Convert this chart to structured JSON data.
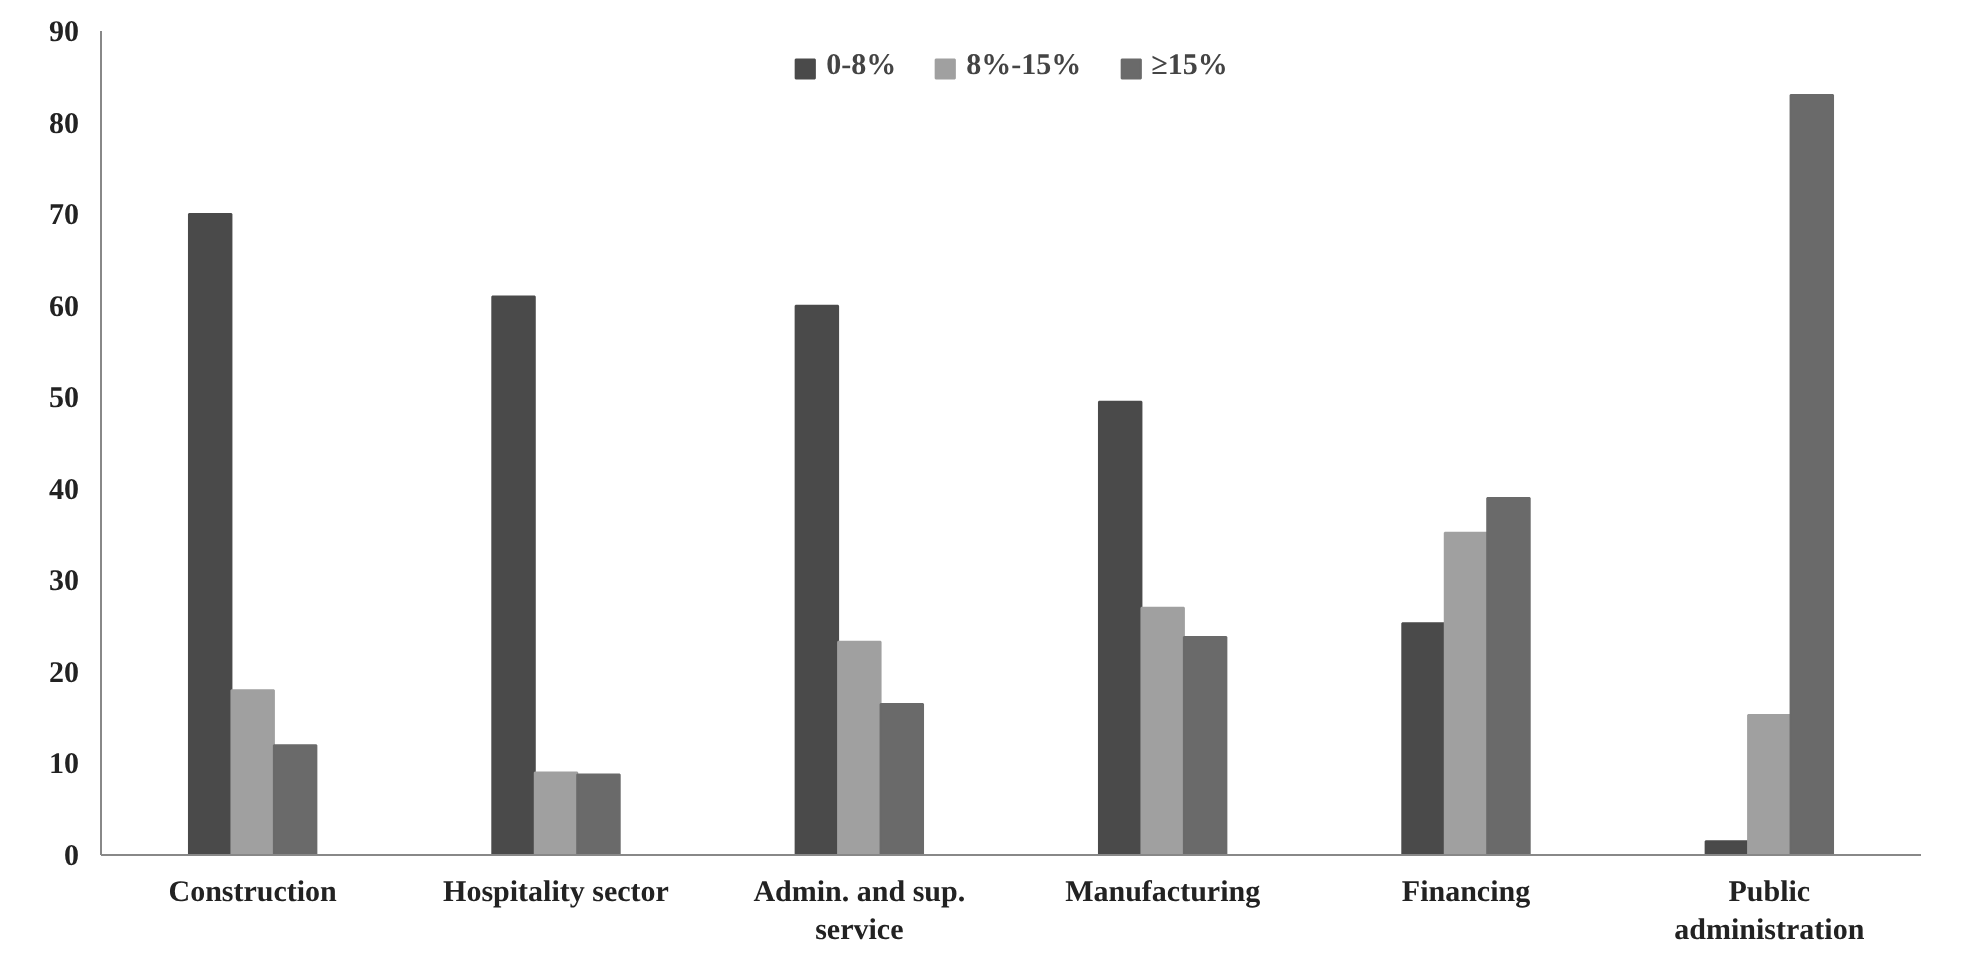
{
  "chart_data": {
    "type": "bar",
    "categories": [
      "Construction",
      "Hospitality sector",
      "Admin. and sup. service",
      "Manufacturing",
      "Financing",
      "Public administration"
    ],
    "series": [
      {
        "name": "0-8%",
        "color": "#4a4a4a",
        "values": [
          70,
          61,
          60,
          49.5,
          25.3,
          1.5
        ]
      },
      {
        "name": "8%-15%",
        "color": "#a0a0a0",
        "values": [
          18,
          9,
          23.3,
          27,
          35.2,
          15.3
        ]
      },
      {
        "name": "≥15%",
        "color": "#6a6a6a",
        "values": [
          12,
          8.8,
          16.5,
          23.8,
          39,
          83
        ]
      }
    ],
    "ylim": [
      0,
      90
    ],
    "yticks": [
      0,
      10,
      20,
      30,
      40,
      50,
      60,
      70,
      80,
      90
    ],
    "grid": false,
    "legend": "top"
  }
}
